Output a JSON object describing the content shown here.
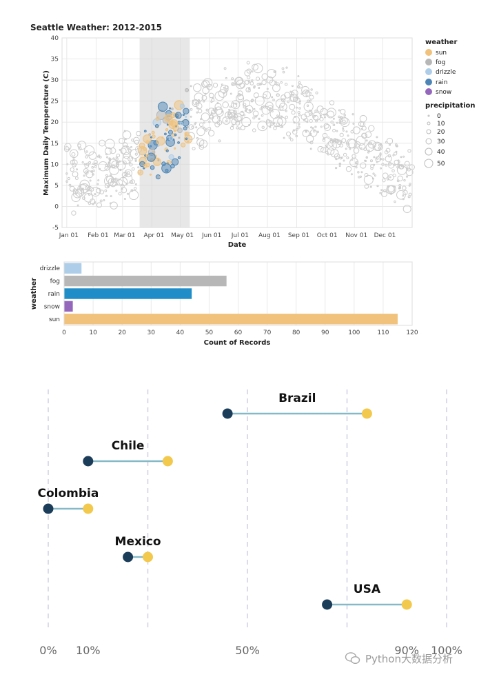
{
  "colors": {
    "sun": "#f0c27b",
    "fog": "#b7b7b7",
    "drizzle": "#aecde8",
    "rain": "#1f8ec8",
    "rain_point": "#4d86b6",
    "snow": "#9467bd",
    "dumbbell_left": "#1c3d5a",
    "dumbbell_right": "#f2c94c",
    "dumbbell_line": "#86b9c7",
    "dumbbell_grid": "#cfcfe3",
    "grid": "#e8e8e8",
    "brush": "#d7d7d7",
    "inactive_point": "#cccccc"
  },
  "chart_data": [
    {
      "type": "scatter",
      "title": "Seattle Weather: 2012-2015",
      "xlabel": "Date",
      "ylabel": "Maximum Daily Temperature (C)",
      "ylim": [
        -5,
        40
      ],
      "y_ticks": [
        -5,
        0,
        5,
        10,
        15,
        20,
        25,
        30,
        35,
        40
      ],
      "x_ticks": [
        "Jan 01",
        "Feb 01",
        "Mar 01",
        "Apr 01",
        "May 01",
        "Jun 01",
        "Jul 01",
        "Aug 01",
        "Sep 01",
        "Oct 01",
        "Nov 01",
        "Dec 01"
      ],
      "x_tick_days": [
        0,
        31,
        59,
        90,
        120,
        151,
        181,
        212,
        243,
        273,
        304,
        334
      ],
      "x_range_days": [
        -5,
        365
      ],
      "brush_days": [
        77,
        130
      ],
      "grid": true,
      "legend_position": "right",
      "legend": {
        "weather_title": "weather",
        "weather_items": [
          "sun",
          "fog",
          "drizzle",
          "rain",
          "snow"
        ],
        "size_title": "precipitation",
        "size_items": [
          "0",
          "10",
          "20",
          "30",
          "40",
          "50"
        ]
      },
      "series_note_colored": "points inside the selected interval are colored by weather"
    },
    {
      "type": "bar",
      "orientation": "horizontal",
      "xlabel": "Count of Records",
      "ylabel": "weather",
      "categories": [
        "drizzle",
        "fog",
        "rain",
        "snow",
        "sun"
      ],
      "values": [
        6,
        56,
        44,
        3,
        115
      ],
      "xlim": [
        0,
        120
      ],
      "x_ticks": [
        0,
        10,
        20,
        30,
        40,
        50,
        60,
        70,
        80,
        90,
        100,
        110,
        120
      ],
      "grid": true
    },
    {
      "type": "dumbbell",
      "categories": [
        "Brazil",
        "Chile",
        "Colombia",
        "Mexico",
        "USA"
      ],
      "start": [
        45,
        10,
        0,
        20,
        70
      ],
      "end": [
        80,
        30,
        10,
        25,
        90
      ],
      "x_ticks": [
        "0%",
        "10%",
        "50%",
        "90%",
        "100%"
      ],
      "x_tick_values": [
        0,
        10,
        50,
        90,
        100
      ],
      "gridlines": [
        0,
        25,
        50,
        75,
        100
      ],
      "xlim": [
        0,
        100
      ]
    }
  ],
  "watermark": "Python大数据分析"
}
